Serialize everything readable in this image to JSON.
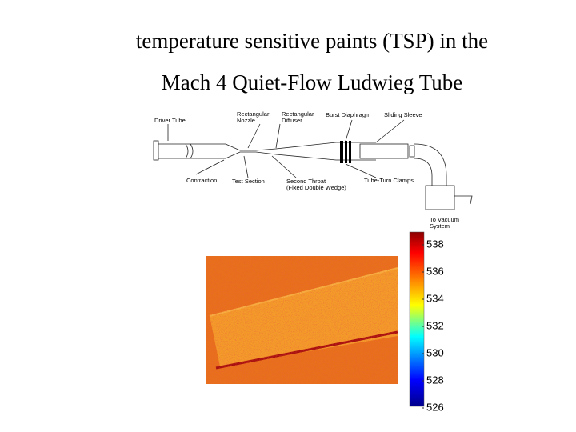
{
  "title": [
    "temperature sensitive paints (TSP) in the",
    "Mach 4 Quiet-Flow Ludwieg Tube"
  ],
  "diagram": {
    "labels": [
      [
        "Driver Tube"
      ],
      [
        "Rectangular",
        "Nozzle"
      ],
      [
        "Rectangular",
        "Diffuser"
      ],
      [
        "Burst Diaphragm"
      ],
      [
        "Sliding Sleeve"
      ],
      [
        "Contraction"
      ],
      [
        "Test Section"
      ],
      [
        "Second Throat",
        "(Fixed Double Wedge)"
      ],
      [
        "Tube-Turn Clamps"
      ],
      [
        "To Vacuum",
        "System"
      ]
    ]
  },
  "colorbar": {
    "ticks": [
      538,
      536,
      534,
      532,
      530,
      528,
      526
    ]
  }
}
